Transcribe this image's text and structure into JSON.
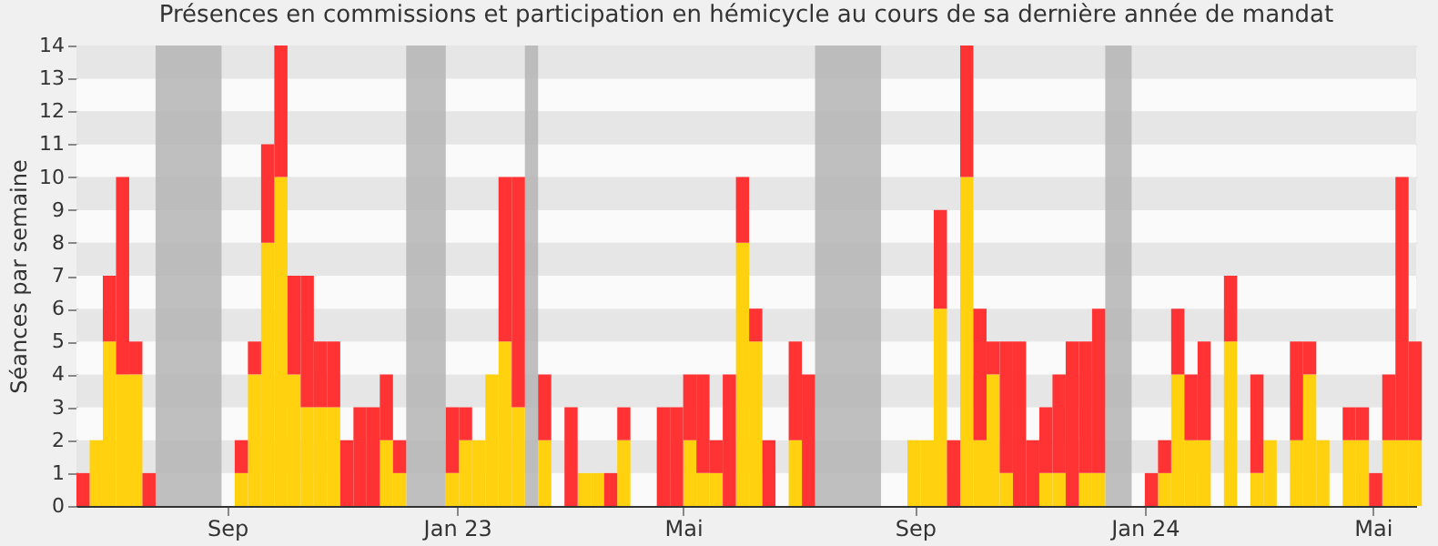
{
  "chart_data": {
    "type": "bar",
    "title": "Présences en commissions et participation en hémicycle au cours de sa dernière année de mandat",
    "ylabel": "Séances par semaine",
    "stacked": true,
    "grid": true,
    "x": [
      "2022-06-13",
      "2022-06-20",
      "2022-06-27",
      "2022-07-04",
      "2022-07-11",
      "2022-07-18",
      "2022-07-25",
      "2022-08-01",
      "2022-08-08",
      "2022-08-15",
      "2022-08-22",
      "2022-08-29",
      "2022-09-05",
      "2022-09-12",
      "2022-09-19",
      "2022-09-26",
      "2022-10-03",
      "2022-10-10",
      "2022-10-17",
      "2022-10-24",
      "2022-10-31",
      "2022-11-07",
      "2022-11-14",
      "2022-11-21",
      "2022-11-28",
      "2022-12-05",
      "2022-12-12",
      "2022-12-19",
      "2022-12-26",
      "2023-01-02",
      "2023-01-09",
      "2023-01-16",
      "2023-01-23",
      "2023-01-30",
      "2023-02-06",
      "2023-02-13",
      "2023-02-20",
      "2023-02-27",
      "2023-03-06",
      "2023-03-13",
      "2023-03-20",
      "2023-03-27",
      "2023-04-03",
      "2023-04-10",
      "2023-04-17",
      "2023-04-24",
      "2023-05-01",
      "2023-05-08",
      "2023-05-15",
      "2023-05-22",
      "2023-05-29",
      "2023-06-05",
      "2023-06-12",
      "2023-06-19",
      "2023-06-26",
      "2023-07-03",
      "2023-07-10",
      "2023-07-17",
      "2023-07-24",
      "2023-07-31",
      "2023-08-07",
      "2023-08-14",
      "2023-08-21",
      "2023-08-28",
      "2023-09-04",
      "2023-09-11",
      "2023-09-18",
      "2023-09-25",
      "2023-10-02",
      "2023-10-09",
      "2023-10-16",
      "2023-10-23",
      "2023-10-30",
      "2023-11-06",
      "2023-11-13",
      "2023-11-20",
      "2023-11-27",
      "2023-12-04",
      "2023-12-11",
      "2023-12-18",
      "2023-12-25",
      "2024-01-01",
      "2024-01-08",
      "2024-01-15",
      "2024-01-22",
      "2024-01-29",
      "2024-02-05",
      "2024-02-12",
      "2024-02-19",
      "2024-02-26",
      "2024-03-04",
      "2024-03-11",
      "2024-03-18",
      "2024-03-25",
      "2024-04-01",
      "2024-04-08",
      "2024-04-15",
      "2024-04-22",
      "2024-04-29",
      "2024-05-06",
      "2024-05-13",
      "2024-05-20"
    ],
    "series": [
      {
        "color": "#ffd10f",
        "values": [
          0,
          2,
          5,
          4,
          4,
          0,
          0,
          0,
          0,
          0,
          0,
          0,
          1,
          4,
          8,
          10,
          4,
          3,
          3,
          3,
          0,
          0,
          0,
          2,
          1,
          0,
          0,
          0,
          1,
          2,
          2,
          4,
          5,
          3,
          0,
          2,
          0,
          0,
          1,
          1,
          0,
          2,
          0,
          0,
          0,
          0,
          2,
          1,
          1,
          0,
          8,
          5,
          0,
          0,
          2,
          0,
          0,
          0,
          0,
          0,
          0,
          0,
          0,
          2,
          2,
          6,
          0,
          10,
          2,
          4,
          1,
          0,
          0,
          1,
          1,
          0,
          1,
          1,
          0,
          0,
          0,
          0,
          1,
          4,
          2,
          2,
          0,
          5,
          0,
          1,
          2,
          0,
          2,
          4,
          2,
          0,
          2,
          2,
          0,
          2,
          2,
          2
        ]
      },
      {
        "color": "#ff3333",
        "values": [
          1,
          0,
          2,
          6,
          1,
          1,
          0,
          0,
          0,
          0,
          0,
          0,
          1,
          1,
          3,
          4,
          3,
          4,
          2,
          2,
          2,
          3,
          3,
          2,
          1,
          0,
          0,
          0,
          2,
          1,
          0,
          0,
          5,
          7,
          0,
          2,
          0,
          3,
          0,
          0,
          1,
          1,
          0,
          0,
          3,
          3,
          2,
          3,
          1,
          4,
          2,
          1,
          2,
          0,
          3,
          4,
          0,
          0,
          0,
          0,
          0,
          0,
          0,
          0,
          0,
          3,
          2,
          4,
          4,
          1,
          4,
          5,
          2,
          2,
          3,
          5,
          4,
          5,
          0,
          0,
          0,
          1,
          1,
          2,
          2,
          3,
          0,
          2,
          0,
          3,
          0,
          0,
          3,
          1,
          0,
          0,
          1,
          1,
          1,
          2,
          8,
          3
        ]
      }
    ],
    "bands": [
      {
        "axis": "x",
        "from": "2022-07-25",
        "to": "2022-08-29",
        "color": "#b4b4b4"
      },
      {
        "axis": "x",
        "from": "2022-12-05",
        "to": "2022-12-26",
        "color": "#b4b4b4"
      },
      {
        "axis": "x",
        "from": "2023-02-06",
        "to": "2023-02-13",
        "color": "#b4b4b4"
      },
      {
        "axis": "x",
        "from": "2023-07-10",
        "to": "2023-08-14",
        "color": "#b4b4b4"
      },
      {
        "axis": "x",
        "from": "2023-12-11",
        "to": "2023-12-25",
        "color": "#b4b4b4"
      }
    ],
    "xlim": [
      "2022-06-13",
      "2024-05-24"
    ],
    "xticks": [
      {
        "value": "2022-09-01",
        "label": "Sep"
      },
      {
        "value": "2023-01-01",
        "label": "Jan 23"
      },
      {
        "value": "2023-05-01",
        "label": "Mai"
      },
      {
        "value": "2023-09-01",
        "label": "Sep"
      },
      {
        "value": "2024-01-01",
        "label": "Jan 24"
      },
      {
        "value": "2024-05-01",
        "label": "Mai"
      }
    ],
    "ylim": [
      0,
      14
    ],
    "yticks": [
      0,
      1,
      2,
      3,
      4,
      5,
      6,
      7,
      8,
      9,
      10,
      11,
      12,
      13,
      14
    ]
  }
}
